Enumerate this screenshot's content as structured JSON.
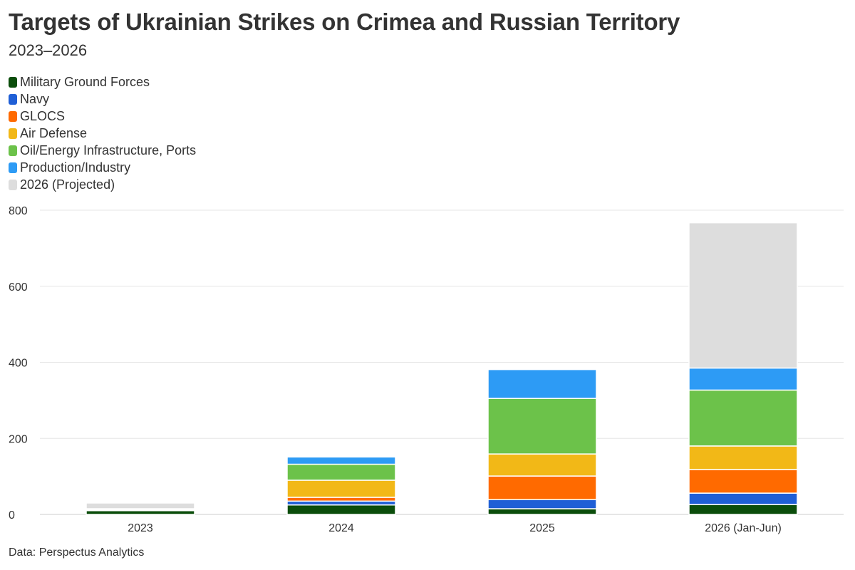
{
  "title": "Targets of Ukrainian Strikes on Crimea and Russian Territory",
  "subtitle": "2023–2026",
  "source": "Data: Perspectus Analytics",
  "legend": [
    {
      "label": "Military Ground Forces",
      "color": "#0b4d0b"
    },
    {
      "label": "Navy",
      "color": "#1f5fd6"
    },
    {
      "label": "GLOCS",
      "color": "#ff6a00"
    },
    {
      "label": "Air Defense",
      "color": "#f2b817"
    },
    {
      "label": "Oil/Energy Infrastructure, Ports",
      "color": "#6cc24a"
    },
    {
      "label": "Production/Industry",
      "color": "#2d9bf5"
    },
    {
      "label": "2026 (Projected)",
      "color": "#dddddd"
    }
  ],
  "chart_data": {
    "type": "bar",
    "stacked": true,
    "categories": [
      "2023",
      "2024",
      "2025",
      "2026 (Jan-Jun)"
    ],
    "series": [
      {
        "name": "Military Ground Forces",
        "color": "#0b4d0b",
        "values": [
          10,
          25,
          15,
          26
        ]
      },
      {
        "name": "Navy",
        "color": "#1f5fd6",
        "values": [
          1,
          10,
          24,
          30
        ]
      },
      {
        "name": "GLOCS",
        "color": "#ff6a00",
        "values": [
          1,
          10,
          62,
          62
        ]
      },
      {
        "name": "Air Defense",
        "color": "#f2b817",
        "values": [
          1,
          45,
          58,
          62
        ]
      },
      {
        "name": "Oil/Energy Infrastructure, Ports",
        "color": "#6cc24a",
        "values": [
          1,
          42,
          146,
          147
        ]
      },
      {
        "name": "Production/Industry",
        "color": "#2d9bf5",
        "values": [
          1,
          19,
          76,
          58
        ]
      },
      {
        "name": "2026 (Projected)",
        "color": "#dddddd",
        "values": [
          15,
          0,
          0,
          382
        ]
      }
    ],
    "yticks": [
      0,
      200,
      400,
      600,
      800
    ],
    "ylim": [
      0,
      800
    ],
    "xlabel": "",
    "ylabel": "",
    "grid": true,
    "legend_position": "top-left"
  }
}
